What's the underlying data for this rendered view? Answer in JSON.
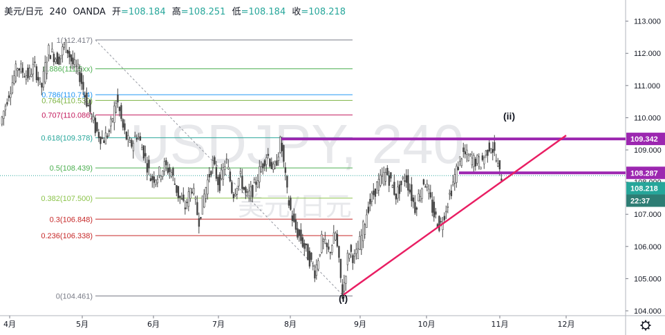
{
  "header": {
    "symbol": "美元/日元",
    "interval": "240",
    "source": "OANDA",
    "open_label": "开",
    "open": "=108.184",
    "high_label": "高",
    "high": "=108.251",
    "low_label": "低",
    "low": "=108.184",
    "close_label": "收",
    "close": "=108.218"
  },
  "watermark": {
    "symbol": "USDJPY, 240",
    "name": "美元/日元"
  },
  "colors": {
    "up": "#26a69a",
    "down": "#ef5350",
    "candle": "#444444",
    "resistance": "#9c27b0",
    "trendline": "#e91e63",
    "price_tag": "#26a69a",
    "time_tag": "#2e7d74"
  },
  "price_tags": {
    "resistance_upper": "109.342",
    "resistance_lower": "108.287",
    "last_price": "108.218",
    "countdown": "22:37"
  },
  "wave_labels": {
    "low": "(i)",
    "high": "(ii)"
  },
  "settings_icon": "gear-icon",
  "chart_data": {
    "type": "candlestick",
    "title": "USDJPY, 240",
    "ylim": [
      103.85,
      113.25
    ],
    "y_ticks": [
      "104.000",
      "105.000",
      "106.000",
      "107.000",
      "108.000",
      "109.000",
      "110.000",
      "111.000",
      "112.000",
      "113.000"
    ],
    "x_ticks": [
      "4月",
      "5月",
      "6月",
      "7月",
      "8月",
      "9月",
      "10月",
      "11月",
      "12月"
    ],
    "fibonacci": [
      {
        "label": "1(112.417)",
        "price": 112.417,
        "color": "#787b86"
      },
      {
        "label": "0.886(111.5xx)",
        "price": 111.52,
        "color": "#4caf50"
      },
      {
        "label": "0.786(110.714)",
        "price": 110.714,
        "color": "#2196f3"
      },
      {
        "label": "0.764(110.539)",
        "price": 110.539,
        "color": "#7cb342"
      },
      {
        "label": "0.707(110.086)",
        "price": 110.086,
        "color": "#c2185b"
      },
      {
        "label": "0.618(109.378)",
        "price": 109.378,
        "color": "#26a69a"
      },
      {
        "label": "0.5(108.439)",
        "price": 108.439,
        "color": "#4caf50"
      },
      {
        "label": "0.382(107.500)",
        "price": 107.5,
        "color": "#8bc34a"
      },
      {
        "label": "0.3(106.848)",
        "price": 106.848,
        "color": "#c62828"
      },
      {
        "label": "0.236(106.338)",
        "price": 106.338,
        "color": "#c62828"
      },
      {
        "label": "0(104.461)",
        "price": 104.461,
        "color": "#787b86"
      }
    ],
    "resistance_levels": [
      109.342,
      108.287
    ],
    "trendline": {
      "from_price": 104.5,
      "to_price": 109.45
    },
    "path_points": [
      {
        "x": 0,
        "y": 109.8
      },
      {
        "x": 0.02,
        "y": 110.6
      },
      {
        "x": 0.05,
        "y": 111.6
      },
      {
        "x": 0.08,
        "y": 111.3
      },
      {
        "x": 0.1,
        "y": 111.6
      },
      {
        "x": 0.12,
        "y": 110.9
      },
      {
        "x": 0.14,
        "y": 112.1
      },
      {
        "x": 0.17,
        "y": 111.8
      },
      {
        "x": 0.19,
        "y": 112.3
      },
      {
        "x": 0.21,
        "y": 111.7
      },
      {
        "x": 0.23,
        "y": 111.4
      },
      {
        "x": 0.25,
        "y": 110.6
      },
      {
        "x": 0.28,
        "y": 109.6
      },
      {
        "x": 0.3,
        "y": 109.3
      },
      {
        "x": 0.32,
        "y": 109.6
      },
      {
        "x": 0.34,
        "y": 110.6
      },
      {
        "x": 0.36,
        "y": 109.6
      },
      {
        "x": 0.38,
        "y": 109.1
      },
      {
        "x": 0.4,
        "y": 109.5
      },
      {
        "x": 0.42,
        "y": 108.9
      },
      {
        "x": 0.44,
        "y": 108.1
      },
      {
        "x": 0.46,
        "y": 108.2
      },
      {
        "x": 0.48,
        "y": 108.5
      },
      {
        "x": 0.5,
        "y": 108.3
      },
      {
        "x": 0.52,
        "y": 107.6
      },
      {
        "x": 0.54,
        "y": 107.2
      },
      {
        "x": 0.56,
        "y": 107.9
      },
      {
        "x": 0.58,
        "y": 106.8
      },
      {
        "x": 0.6,
        "y": 107.8
      },
      {
        "x": 0.62,
        "y": 108.6
      },
      {
        "x": 0.64,
        "y": 107.9
      },
      {
        "x": 0.66,
        "y": 108.7
      },
      {
        "x": 0.68,
        "y": 107.6
      },
      {
        "x": 0.7,
        "y": 108.2
      },
      {
        "x": 0.72,
        "y": 107.5
      },
      {
        "x": 0.74,
        "y": 107.8
      },
      {
        "x": 0.76,
        "y": 108.4
      },
      {
        "x": 0.78,
        "y": 108.9
      },
      {
        "x": 0.8,
        "y": 108.3
      },
      {
        "x": 0.82,
        "y": 109.3
      },
      {
        "x": 0.84,
        "y": 107.5
      },
      {
        "x": 0.86,
        "y": 106.6
      },
      {
        "x": 0.88,
        "y": 106.2
      },
      {
        "x": 0.9,
        "y": 105.7
      },
      {
        "x": 0.92,
        "y": 105.2
      },
      {
        "x": 0.94,
        "y": 106.2
      },
      {
        "x": 0.96,
        "y": 105.8
      },
      {
        "x": 0.98,
        "y": 106.4
      },
      {
        "x": 1.0,
        "y": 104.5
      }
    ]
  }
}
